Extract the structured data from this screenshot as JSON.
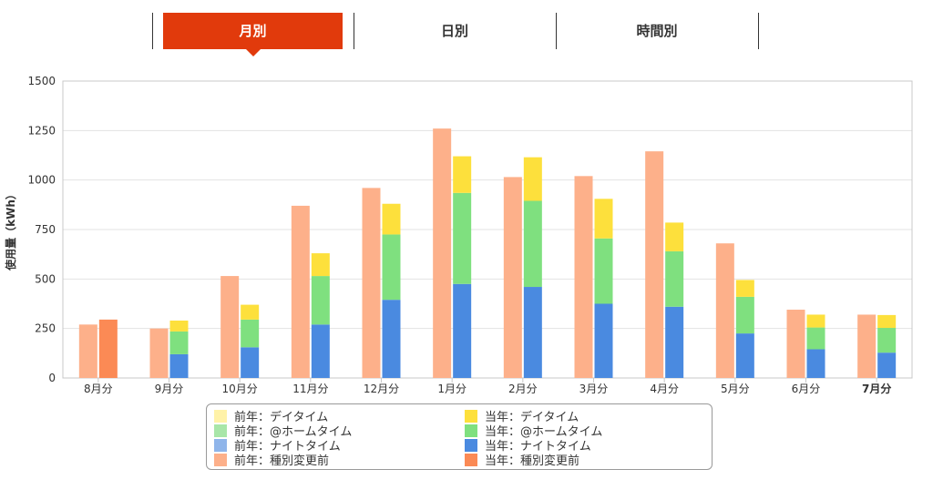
{
  "tabs": [
    {
      "label": "月別",
      "active": true
    },
    {
      "label": "日別",
      "active": false
    },
    {
      "label": "時間別",
      "active": false
    }
  ],
  "colors": {
    "accent": "#e13a0c",
    "prev_day": "#fff2a8",
    "prev_home": "#a8e6a8",
    "prev_night": "#8fb5ea",
    "prev_before": "#fdb08a",
    "cur_day": "#fde03c",
    "cur_home": "#7fe07f",
    "cur_night": "#4a8ae0",
    "cur_before": "#fb8a55"
  },
  "legend": [
    {
      "label": "前年：デイタイム",
      "color": "#fff2a8"
    },
    {
      "label": "当年：デイタイム",
      "color": "#fde03c"
    },
    {
      "label": "前年：@ホームタイム",
      "color": "#a8e6a8"
    },
    {
      "label": "当年：@ホームタイム",
      "color": "#7fe07f"
    },
    {
      "label": "前年：ナイトタイム",
      "color": "#8fb5ea"
    },
    {
      "label": "当年：ナイトタイム",
      "color": "#4a8ae0"
    },
    {
      "label": "前年：種別変更前",
      "color": "#fdb08a"
    },
    {
      "label": "当年：種別変更前",
      "color": "#fb8a55"
    }
  ],
  "chart_data": {
    "type": "bar",
    "ylabel": "使用量（kWh）",
    "ylim": [
      0,
      1500
    ],
    "yticks": [
      0,
      250,
      500,
      750,
      1000,
      1250,
      1500
    ],
    "categories": [
      "8月分",
      "9月分",
      "10月分",
      "11月分",
      "12月分",
      "1月分",
      "2月分",
      "3月分",
      "4月分",
      "5月分",
      "6月分",
      "7月分"
    ],
    "bold_category": "7月分",
    "series": [
      {
        "name": "前年：種別変更前",
        "values": [
          270,
          250,
          515,
          870,
          960,
          1260,
          1015,
          1020,
          1145,
          680,
          345,
          320
        ]
      },
      {
        "name": "当年：種別変更前",
        "values": [
          295,
          0,
          0,
          0,
          0,
          0,
          0,
          0,
          0,
          0,
          0,
          0
        ]
      },
      {
        "name": "当年：ナイトタイム",
        "values": [
          0,
          120,
          155,
          270,
          395,
          475,
          460,
          375,
          360,
          225,
          145,
          128
        ]
      },
      {
        "name": "当年：@ホームタイム",
        "values": [
          0,
          115,
          140,
          245,
          330,
          460,
          435,
          330,
          280,
          185,
          110,
          125
        ]
      },
      {
        "name": "当年：デイタイム",
        "values": [
          0,
          55,
          75,
          115,
          155,
          185,
          220,
          200,
          145,
          85,
          65,
          65
        ]
      }
    ],
    "grid": true
  }
}
